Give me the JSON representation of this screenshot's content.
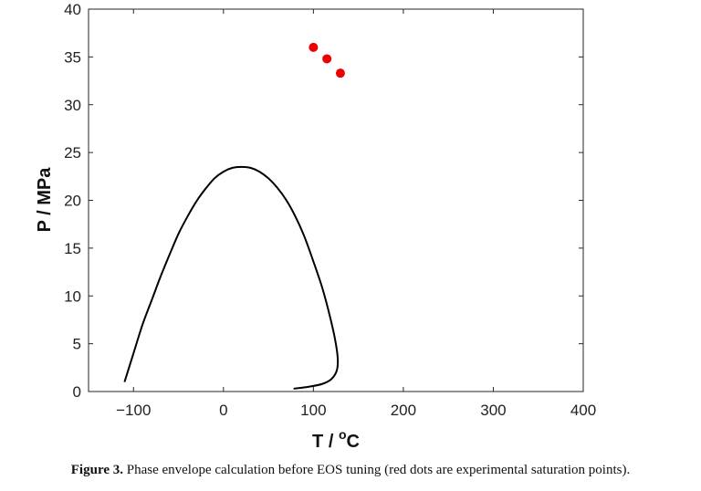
{
  "chart_data": {
    "type": "line",
    "xlabel": "T / ",
    "xlabel_unit": "C",
    "xlabel_degree": "o",
    "ylabel": "P / MPa",
    "xlim": [
      -150,
      400
    ],
    "ylim": [
      0,
      40
    ],
    "xticks": [
      -100,
      0,
      100,
      200,
      300,
      400
    ],
    "xtick_labels": [
      "−100",
      "0",
      "100",
      "200",
      "300",
      "400"
    ],
    "yticks": [
      0,
      5,
      10,
      15,
      20,
      25,
      30,
      35,
      40
    ],
    "grid": false,
    "series": [
      {
        "name": "phase envelope",
        "type": "line",
        "color": "#000000",
        "points": [
          [
            -110,
            1.0
          ],
          [
            -100,
            4.0
          ],
          [
            -90,
            7.0
          ],
          [
            -80,
            9.5
          ],
          [
            -70,
            12.0
          ],
          [
            -60,
            14.3
          ],
          [
            -50,
            16.5
          ],
          [
            -40,
            18.3
          ],
          [
            -30,
            19.9
          ],
          [
            -20,
            21.2
          ],
          [
            -10,
            22.3
          ],
          [
            0,
            23.0
          ],
          [
            10,
            23.4
          ],
          [
            20,
            23.5
          ],
          [
            30,
            23.4
          ],
          [
            40,
            23.0
          ],
          [
            50,
            22.3
          ],
          [
            60,
            21.3
          ],
          [
            70,
            20.0
          ],
          [
            80,
            18.3
          ],
          [
            90,
            16.2
          ],
          [
            100,
            13.6
          ],
          [
            110,
            10.8
          ],
          [
            118,
            8.0
          ],
          [
            124,
            5.5
          ],
          [
            127,
            3.5
          ],
          [
            126,
            2.2
          ],
          [
            120,
            1.3
          ],
          [
            110,
            0.8
          ],
          [
            95,
            0.5
          ],
          [
            78,
            0.3
          ]
        ]
      },
      {
        "name": "experimental saturation points",
        "type": "scatter",
        "color": "#ee0000",
        "points": [
          [
            100,
            36.0
          ],
          [
            115,
            34.8
          ],
          [
            130,
            33.3
          ]
        ]
      }
    ]
  },
  "caption": {
    "label": "Figure 3.",
    "text": " Phase envelope calculation before EOS tuning (red dots are experimental saturation points)."
  }
}
